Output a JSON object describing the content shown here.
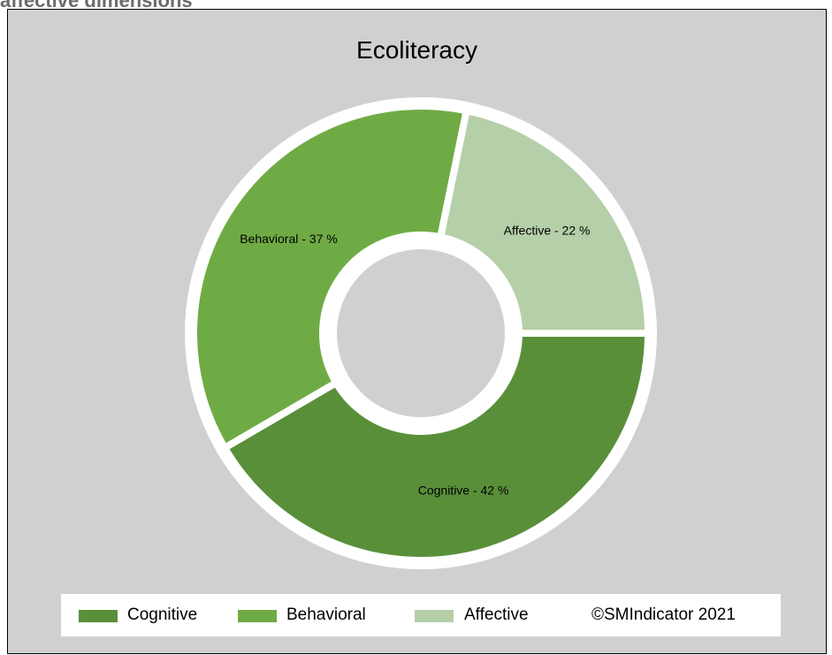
{
  "page_heading": "affective dimensions",
  "chart_data": {
    "type": "pie",
    "variant": "donut",
    "title": "Ecoliteracy",
    "slices": [
      {
        "label": "Cognitive",
        "value": 42,
        "display": "Cognitive - 42 %",
        "color": "#5a8f3a"
      },
      {
        "label": "Behavioral",
        "value": 37,
        "display": "Behavioral - 37 %",
        "color": "#6fab45"
      },
      {
        "label": "Affective",
        "value": 22,
        "display": "Affective - 22 %",
        "color": "#b5cfa8"
      }
    ],
    "legend_position": "bottom",
    "copyright": "©SMIndicator 2021"
  }
}
